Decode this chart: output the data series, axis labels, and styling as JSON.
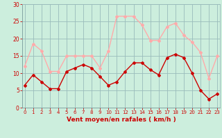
{
  "x": [
    0,
    1,
    2,
    3,
    4,
    5,
    6,
    7,
    8,
    9,
    10,
    11,
    12,
    13,
    14,
    15,
    16,
    17,
    18,
    19,
    20,
    21,
    22,
    23
  ],
  "vent_moyen": [
    6.5,
    9.5,
    7.5,
    5.5,
    5.5,
    10.5,
    11.5,
    12.5,
    11.5,
    9.0,
    6.5,
    7.5,
    10.5,
    13.0,
    13.0,
    11.0,
    9.5,
    14.5,
    15.5,
    14.5,
    10.0,
    5.0,
    2.5,
    4.0
  ],
  "vent_rafales": [
    12.0,
    18.5,
    16.5,
    10.5,
    10.5,
    15.0,
    15.0,
    15.0,
    15.0,
    11.5,
    16.5,
    26.5,
    26.5,
    26.5,
    24.0,
    19.5,
    19.5,
    23.5,
    24.5,
    21.0,
    19.0,
    16.0,
    8.5,
    15.0
  ],
  "color_moyen": "#cc0000",
  "color_rafales": "#ffaaaa",
  "bg_color": "#cceedd",
  "grid_color": "#99bbbb",
  "xlabel": "Vent moyen/en rafales ( km/h )",
  "yticks": [
    0,
    5,
    10,
    15,
    20,
    25,
    30
  ],
  "xlim": [
    -0.3,
    23.3
  ],
  "ylim": [
    0,
    30
  ],
  "tick_color": "#cc0000",
  "label_color": "#cc0000"
}
